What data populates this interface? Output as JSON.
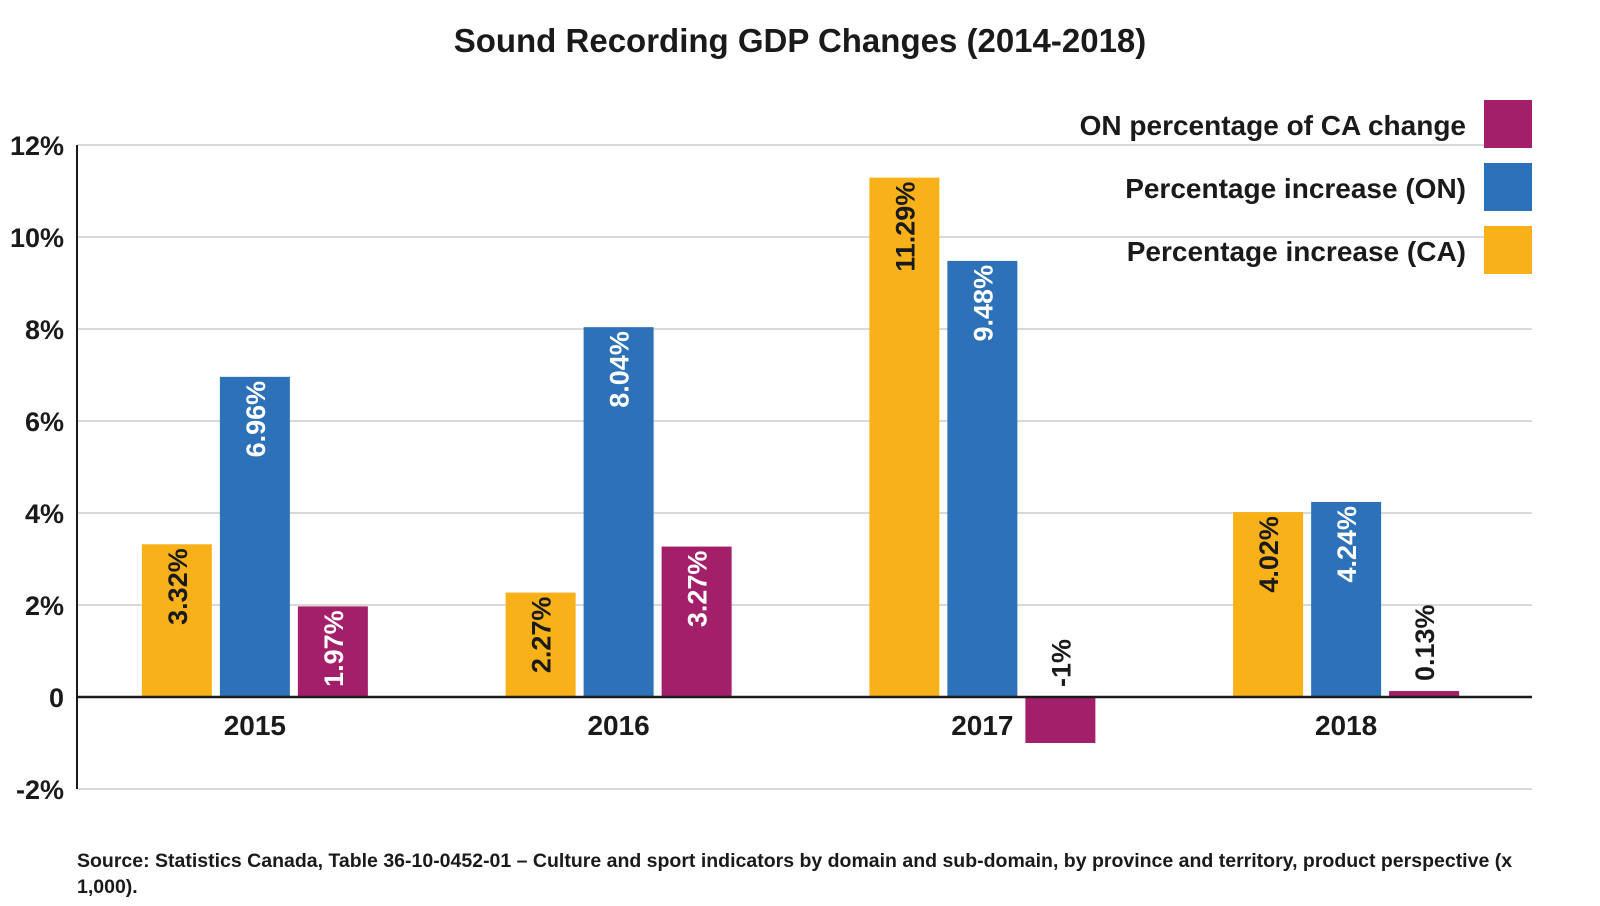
{
  "chart_data": {
    "type": "bar",
    "title": "Sound Recording GDP Changes (2014-2018)",
    "xlabel": "",
    "ylabel": "",
    "categories": [
      "2015",
      "2016",
      "2017",
      "2018"
    ],
    "ylim": [
      -2,
      12
    ],
    "yticks": [
      -2,
      0,
      2,
      4,
      6,
      8,
      10,
      12
    ],
    "ytick_labels": [
      "-2%",
      "0",
      "2%",
      "4%",
      "6%",
      "8%",
      "10%",
      "12%"
    ],
    "grid": true,
    "legend_position": "top-right",
    "series": [
      {
        "name": "Percentage increase (CA)",
        "color": "#F9B11A",
        "label_color": "#1a1a1a",
        "values": [
          3.32,
          2.27,
          11.29,
          4.02
        ],
        "labels": [
          "3.32%",
          "2.27%",
          "11.29%",
          "4.02%"
        ]
      },
      {
        "name": "Percentage increase (ON)",
        "color": "#2D72B8",
        "label_color": "#ffffff",
        "values": [
          6.96,
          8.04,
          9.48,
          4.24
        ],
        "labels": [
          "6.96%",
          "8.04%",
          "9.48%",
          "4.24%"
        ]
      },
      {
        "name": "ON percentage of CA change",
        "color": "#A31F6A",
        "label_color": "#ffffff",
        "values": [
          1.97,
          3.27,
          -1,
          0.13
        ],
        "labels": [
          "1.97%",
          "3.27%",
          "-1%",
          "0.13%"
        ]
      }
    ],
    "legend_order": [
      "ON percentage of CA change",
      "Percentage increase (ON)",
      "Percentage increase (CA)"
    ]
  },
  "source": "Source: Statistics Canada, Table 36-10-0452-01 – Culture and sport indicators by domain and sub-domain, by province and territory, product perspective (x 1,000)."
}
